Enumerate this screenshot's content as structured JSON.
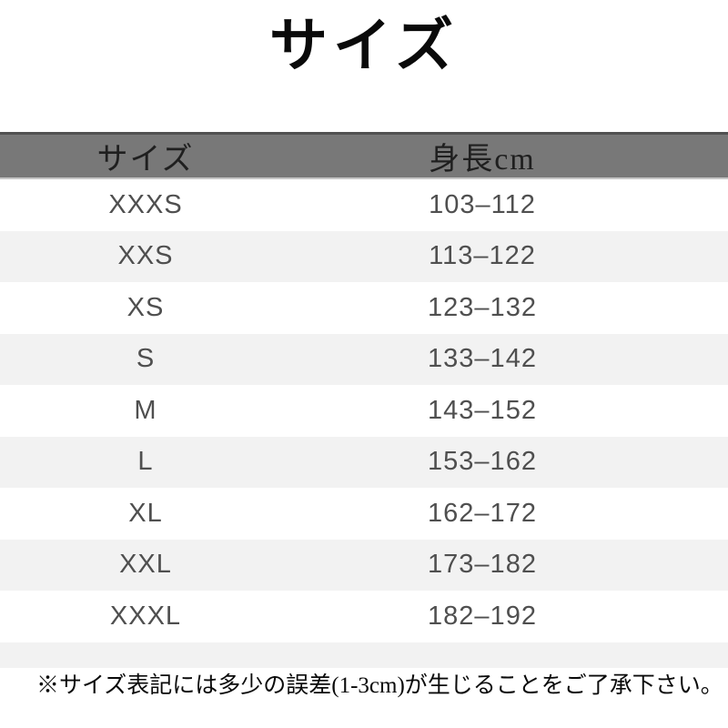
{
  "title": "サイズ",
  "table": {
    "headers": {
      "size": "サイズ",
      "height": "身長cm"
    },
    "rows": [
      {
        "size": "XXXS",
        "height": "103–112"
      },
      {
        "size": "XXS",
        "height": "113–122"
      },
      {
        "size": "XS",
        "height": "123–132"
      },
      {
        "size": "S",
        "height": "133–142"
      },
      {
        "size": "M",
        "height": "143–152"
      },
      {
        "size": "L",
        "height": "153–162"
      },
      {
        "size": "XL",
        "height": "162–172"
      },
      {
        "size": "XXL",
        "height": "173–182"
      },
      {
        "size": "XXXL",
        "height": "182–192"
      }
    ]
  },
  "note": "※サイズ表記には多少の誤差(1-3cm)が生じることをご了承下さい。",
  "colors": {
    "header_bg": "#787878",
    "header_border_top": "#515151",
    "stripe_bg": "#f2f2f2",
    "row_text": "#4f4f4f",
    "header_text": "#1f1f1f",
    "title_text": "#0a0a0a"
  }
}
